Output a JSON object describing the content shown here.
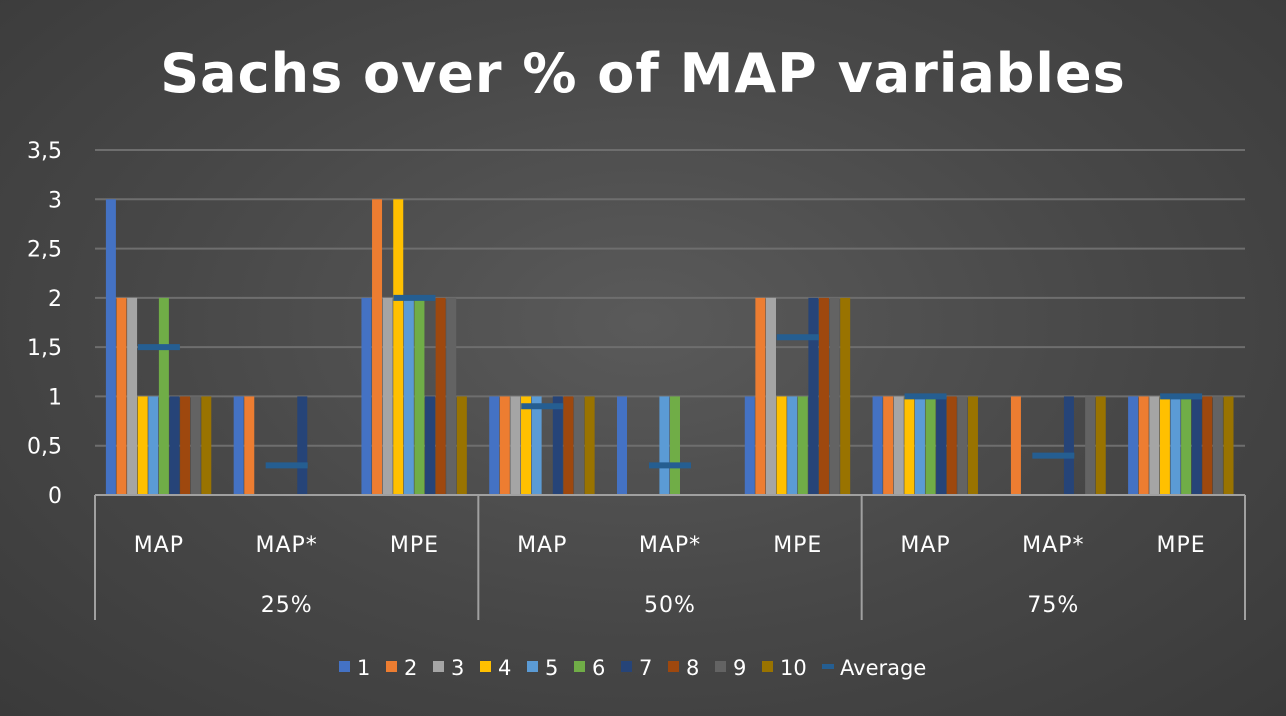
{
  "chart_data": {
    "type": "bar",
    "title": "Sachs over % of MAP variables",
    "xlabel": "",
    "ylabel": "",
    "ylim": [
      0,
      3.5
    ],
    "yticks": [
      "0",
      "0,5",
      "1",
      "1,5",
      "2",
      "2,5",
      "3",
      "3,5"
    ],
    "grid": true,
    "legend_position": "bottom",
    "groups": [
      {
        "label": "25%",
        "categories": [
          "MAP",
          "MAP*",
          "MPE"
        ]
      },
      {
        "label": "50%",
        "categories": [
          "MAP",
          "MAP*",
          "MPE"
        ]
      },
      {
        "label": "75%",
        "categories": [
          "MAP",
          "MAP*",
          "MPE"
        ]
      }
    ],
    "series": [
      {
        "name": "1",
        "color": "#4472C4",
        "values": [
          3,
          1,
          2,
          1,
          1,
          1,
          1,
          0,
          1
        ]
      },
      {
        "name": "2",
        "color": "#ED7D31",
        "values": [
          2,
          1,
          3,
          1,
          0,
          2,
          1,
          1,
          1
        ]
      },
      {
        "name": "3",
        "color": "#A5A5A5",
        "values": [
          2,
          0,
          2,
          1,
          0,
          2,
          1,
          0,
          1
        ]
      },
      {
        "name": "4",
        "color": "#FFC000",
        "values": [
          1,
          0,
          3,
          1,
          0,
          1,
          1,
          0,
          1
        ]
      },
      {
        "name": "5",
        "color": "#5B9BD5",
        "values": [
          1,
          0,
          2,
          1,
          1,
          1,
          1,
          0,
          1
        ]
      },
      {
        "name": "6",
        "color": "#70AD47",
        "values": [
          2,
          0,
          2,
          0,
          1,
          1,
          1,
          0,
          1
        ]
      },
      {
        "name": "7",
        "color": "#264478",
        "values": [
          1,
          1,
          1,
          1,
          0,
          2,
          1,
          1,
          1
        ]
      },
      {
        "name": "8",
        "color": "#9E480E",
        "values": [
          1,
          0,
          2,
          1,
          0,
          2,
          1,
          0,
          1
        ]
      },
      {
        "name": "9",
        "color": "#636363",
        "values": [
          1,
          0,
          2,
          1,
          0,
          2,
          1,
          1,
          1
        ]
      },
      {
        "name": "10",
        "color": "#997300",
        "values": [
          1,
          0,
          1,
          1,
          0,
          2,
          1,
          1,
          1
        ]
      }
    ],
    "average": {
      "name": "Average",
      "color": "#255E91",
      "values": [
        1.5,
        0.3,
        2.0,
        0.9,
        0.3,
        1.6,
        1.0,
        0.4,
        1.0
      ]
    }
  }
}
